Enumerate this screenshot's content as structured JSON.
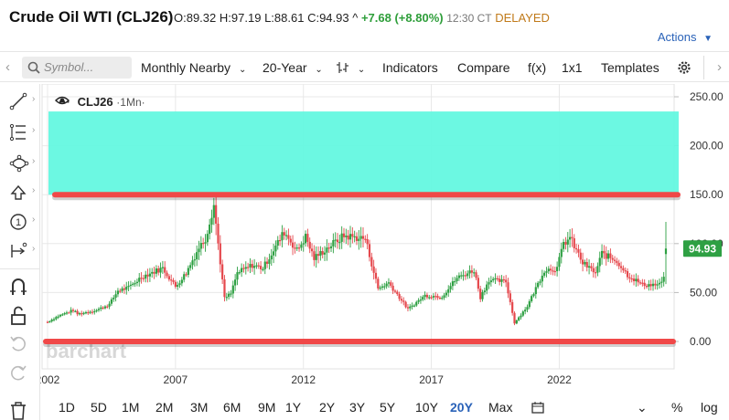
{
  "header": {
    "title": "Crude Oil WTI (CLJ26)",
    "open": "O:89.32",
    "high": "H:97.19",
    "low": "L:88.61",
    "close": "C:94.93",
    "change": "+7.68 (+8.80%)",
    "time": "12:30 CT",
    "status": "DELAYED",
    "actions_label": "Actions"
  },
  "toolbar": {
    "search_placeholder": "Symbol...",
    "period": "Monthly Nearby",
    "range": "20-Year",
    "indicators": "Indicators",
    "compare": "Compare",
    "fx": "f(x)",
    "layout": "1x1",
    "templates": "Templates"
  },
  "legend": {
    "symbol": "CLJ26",
    "interval": "·1Mn·"
  },
  "watermark": "barchart",
  "last_price_label": "94.93",
  "colors": {
    "up_candle": "#2ea043",
    "down_candle": "#e5484d",
    "zone_fill": "#5ff7e0",
    "drawn_line": "#f04848",
    "link_blue": "#2a62b8"
  },
  "chart_data": {
    "type": "candlestick",
    "instrument": "Crude Oil WTI (CLJ26)",
    "interval": "Monthly",
    "x_tick_labels": [
      "2002",
      "2007",
      "2012",
      "2017",
      "2022"
    ],
    "y_tick_labels": [
      "250.00",
      "200.00",
      "150.00",
      "100.00",
      "50.00",
      "0.00"
    ],
    "ylim": [
      0,
      250
    ],
    "xlim": [
      "2002-01",
      "2026-03"
    ],
    "grid": true,
    "last_price": 94.93,
    "close_path": [
      [
        "2002-01",
        20
      ],
      [
        "2002-06",
        26
      ],
      [
        "2003-01",
        32
      ],
      [
        "2003-03",
        28
      ],
      [
        "2003-12",
        32
      ],
      [
        "2004-06",
        38
      ],
      [
        "2004-10",
        52
      ],
      [
        "2005-03",
        55
      ],
      [
        "2005-09",
        66
      ],
      [
        "2006-07",
        75
      ],
      [
        "2007-01",
        56
      ],
      [
        "2007-06",
        70
      ],
      [
        "2007-12",
        96
      ],
      [
        "2008-03",
        105
      ],
      [
        "2008-07",
        140
      ],
      [
        "2008-09",
        100
      ],
      [
        "2008-12",
        44
      ],
      [
        "2009-03",
        49
      ],
      [
        "2009-06",
        70
      ],
      [
        "2010-01",
        78
      ],
      [
        "2010-06",
        75
      ],
      [
        "2011-04",
        112
      ],
      [
        "2011-10",
        93
      ],
      [
        "2012-02",
        107
      ],
      [
        "2012-06",
        85
      ],
      [
        "2013-01",
        97
      ],
      [
        "2013-08",
        108
      ],
      [
        "2014-06",
        105
      ],
      [
        "2014-12",
        54
      ],
      [
        "2015-05",
        60
      ],
      [
        "2016-02",
        33
      ],
      [
        "2016-10",
        47
      ],
      [
        "2017-06",
        46
      ],
      [
        "2018-01",
        65
      ],
      [
        "2018-09",
        73
      ],
      [
        "2018-12",
        45
      ],
      [
        "2019-04",
        63
      ],
      [
        "2019-12",
        61
      ],
      [
        "2020-04",
        19
      ],
      [
        "2020-10",
        36
      ],
      [
        "2021-06",
        73
      ],
      [
        "2021-12",
        75
      ],
      [
        "2022-03",
        100
      ],
      [
        "2022-06",
        106
      ],
      [
        "2022-12",
        80
      ],
      [
        "2023-06",
        70
      ],
      [
        "2023-09",
        90
      ],
      [
        "2024-04",
        82
      ],
      [
        "2024-09",
        68
      ],
      [
        "2025-04",
        58
      ],
      [
        "2025-12",
        58
      ],
      [
        "2026-02",
        65
      ],
      [
        "2026-03",
        94.93
      ]
    ],
    "annotations": [
      {
        "type": "zone",
        "y_from": 150,
        "y_to": 235
      },
      {
        "type": "horizontal_line",
        "y": 150
      },
      {
        "type": "horizontal_line",
        "y": 0
      }
    ]
  },
  "tools": [
    "draw-line-tool",
    "fibonacci-tool",
    "shapes-tool",
    "arrow-up-tool",
    "annotation-tool",
    "measure-tool",
    "magnet-tool",
    "lock-tool",
    "undo-tool",
    "redo-tool",
    "trash-tool"
  ],
  "ranges": [
    "1D",
    "5D",
    "1M",
    "2M",
    "3M",
    "6M",
    "9M",
    "1Y",
    "2Y",
    "3Y",
    "5Y",
    "10Y",
    "20Y",
    "Max"
  ],
  "active_range": "20Y",
  "bottom_right": {
    "percent": "%",
    "log": "log"
  }
}
